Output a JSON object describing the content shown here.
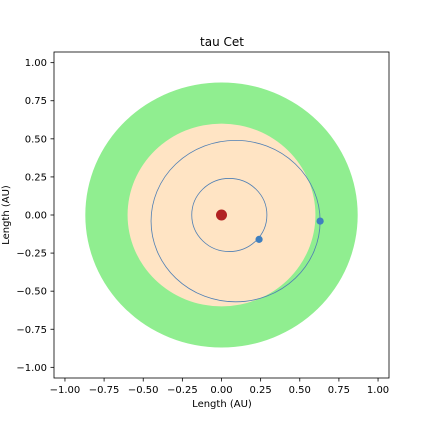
{
  "chart_data": {
    "type": "scatter",
    "title": "tau Cet",
    "xlabel": "Length (AU)",
    "ylabel": "Length (AU)",
    "xlim": [
      -1.07,
      1.07
    ],
    "ylim": [
      -1.07,
      1.07
    ],
    "xticks": [
      -1.0,
      -0.75,
      -0.5,
      -0.25,
      0.0,
      0.25,
      0.5,
      0.75,
      1.0
    ],
    "yticks": [
      -1.0,
      -0.75,
      -0.5,
      -0.25,
      0.0,
      0.25,
      0.5,
      0.75,
      1.0
    ],
    "xtick_labels": [
      "−1.00",
      "−0.75",
      "−0.50",
      "−0.25",
      "0.00",
      "0.25",
      "0.50",
      "0.75",
      "1.00"
    ],
    "ytick_labels": [
      "−1.00",
      "−0.75",
      "−0.50",
      "−0.25",
      "0.00",
      "0.25",
      "0.50",
      "0.75",
      "1.00"
    ],
    "grid": false,
    "habitable_zone": {
      "inner_radius": 0.6,
      "outer_radius": 0.87,
      "inner_color": "#ffe4c4",
      "outer_color": "#90ee90"
    },
    "star": {
      "x": 0.0,
      "y": 0.0,
      "color": "#b22222"
    },
    "orbits": [
      {
        "center_x": 0.05,
        "center_y": 0.0,
        "semi_major": 0.24,
        "semi_minor": 0.24,
        "color": "#4f7fb4"
      },
      {
        "center_x": 0.09,
        "center_y": -0.04,
        "semi_major": 0.54,
        "semi_minor": 0.53,
        "color": "#4f7fb4"
      }
    ],
    "planets": [
      {
        "x": 0.24,
        "y": -0.16,
        "color": "#3f7fbf"
      },
      {
        "x": 0.63,
        "y": -0.04,
        "color": "#3f7fbf"
      }
    ]
  }
}
